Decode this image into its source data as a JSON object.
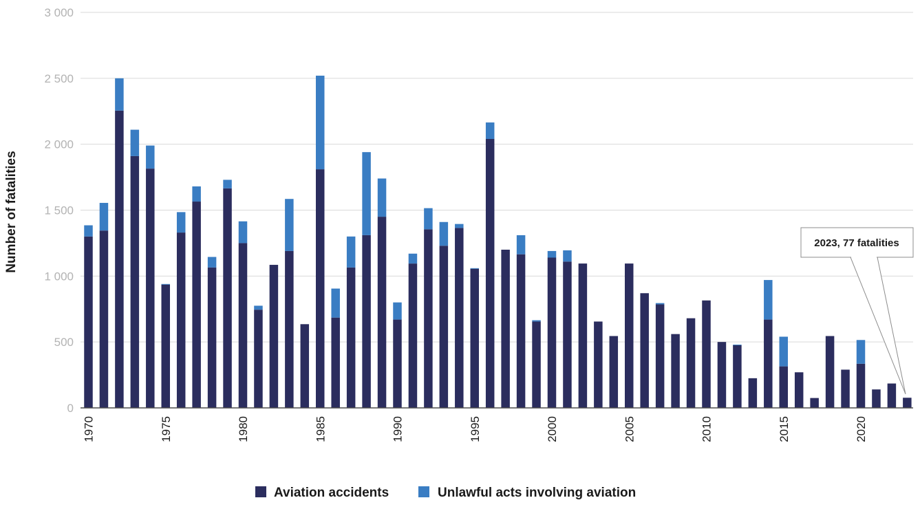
{
  "chart_data": {
    "type": "bar",
    "stacked": true,
    "title": "",
    "xlabel": "",
    "ylabel": "Number of fatalities",
    "ylim": [
      0,
      3000
    ],
    "y_ticks": [
      0,
      500,
      1000,
      1500,
      2000,
      2500,
      3000
    ],
    "y_tick_labels": [
      "0",
      "500",
      "1 000",
      "1 500",
      "2 000",
      "2 500",
      "3 000"
    ],
    "x_tick_labels": [
      "1970",
      "1975",
      "1980",
      "1985",
      "1990",
      "1995",
      "2000",
      "2005",
      "2010",
      "2015",
      "2020"
    ],
    "grid": true,
    "legend_position": "bottom",
    "categories": [
      "1970",
      "1971",
      "1972",
      "1973",
      "1974",
      "1975",
      "1976",
      "1977",
      "1978",
      "1979",
      "1980",
      "1981",
      "1982",
      "1983",
      "1984",
      "1985",
      "1986",
      "1987",
      "1988",
      "1989",
      "1990",
      "1991",
      "1992",
      "1993",
      "1994",
      "1995",
      "1996",
      "1997",
      "1998",
      "1999",
      "2000",
      "2001",
      "2002",
      "2003",
      "2004",
      "2005",
      "2006",
      "2007",
      "2008",
      "2009",
      "2010",
      "2011",
      "2012",
      "2013",
      "2014",
      "2015",
      "2016",
      "2017",
      "2018",
      "2019",
      "2020",
      "2021",
      "2022",
      "2023"
    ],
    "series": [
      {
        "name": "Aviation accidents",
        "color": "#2b2d5e",
        "values": [
          1300,
          1345,
          2255,
          1910,
          1815,
          935,
          1330,
          1565,
          1065,
          1665,
          1250,
          745,
          1085,
          1190,
          635,
          1810,
          685,
          1065,
          1310,
          1450,
          670,
          1095,
          1355,
          1230,
          1365,
          1055,
          2040,
          1200,
          1165,
          655,
          1140,
          1110,
          1095,
          655,
          545,
          1095,
          870,
          785,
          560,
          680,
          815,
          500,
          475,
          225,
          670,
          315,
          270,
          75,
          545,
          290,
          335,
          140,
          185,
          77
        ]
      },
      {
        "name": "Unlawful acts involving aviation",
        "color": "#3a7dc3",
        "values": [
          85,
          210,
          245,
          200,
          175,
          5,
          155,
          115,
          80,
          65,
          165,
          30,
          0,
          395,
          0,
          710,
          220,
          235,
          630,
          290,
          130,
          75,
          160,
          180,
          30,
          5,
          125,
          0,
          145,
          10,
          50,
          85,
          0,
          0,
          0,
          0,
          0,
          10,
          0,
          0,
          0,
          0,
          5,
          0,
          300,
          225,
          0,
          0,
          0,
          0,
          180,
          0,
          0,
          0
        ]
      }
    ],
    "annotation": {
      "text": "2023, 77 fatalities",
      "target_category": "2023"
    }
  },
  "icons": {
    "legend_marker": "square"
  }
}
